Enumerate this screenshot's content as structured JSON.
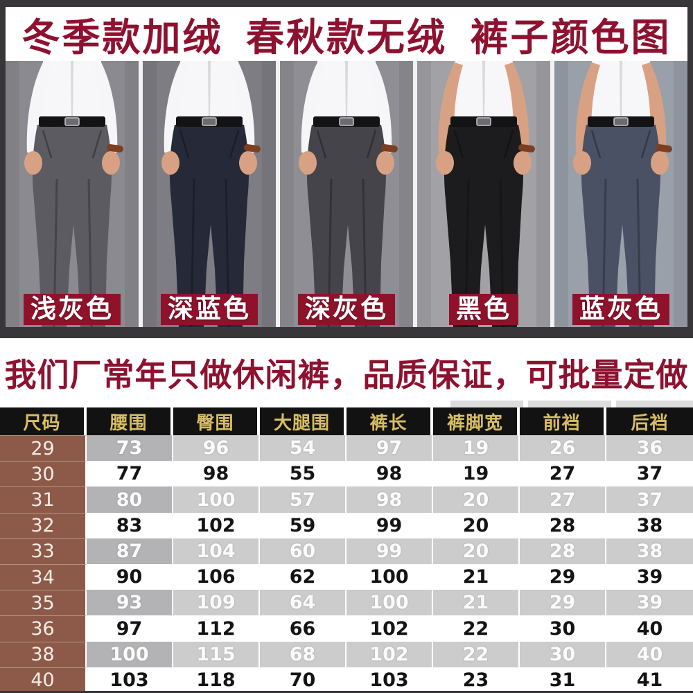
{
  "page": {
    "frame_hex": "#39363a",
    "accent_red_hex": "#8e1230",
    "label_red_hex": "#8f122b"
  },
  "title": {
    "text": "冬季款加绒  春秋款无绒  裤子颜色图"
  },
  "slogan": {
    "text": "我们厂常年只做休闲裤，品质保证，可批量定做"
  },
  "photos": [
    {
      "label": "浅灰色",
      "pants_hex": "#5c5b61",
      "bg_hex": "#8b8a90",
      "sleeve_hex": "#f6f6f8"
    },
    {
      "label": "深蓝色",
      "pants_hex": "#262a38",
      "bg_hex": "#7e7d84",
      "sleeve_hex": "#f6f6f8"
    },
    {
      "label": "深灰色",
      "pants_hex": "#45444a",
      "bg_hex": "#8f8e94",
      "sleeve_hex": "#f6f6f8"
    },
    {
      "label": "黑色",
      "pants_hex": "#1c1c1f",
      "bg_hex": "#a2a2a6",
      "sleeve_hex": "#d9a183"
    },
    {
      "label": "蓝灰色",
      "pants_hex": "#4a5164",
      "bg_hex": "#99a0aa",
      "sleeve_hex": "#d9a183"
    }
  ],
  "size_table": {
    "header_bg_hex": "#121212",
    "header_text_hex": "#d8be62",
    "size_col_hex": "#8d5a49",
    "columns": [
      "尺码",
      "腰围",
      "臀围",
      "大腿围",
      "裤长",
      "裤脚宽",
      "前裆",
      "后裆"
    ],
    "rows": [
      [
        "29",
        "73",
        "96",
        "54",
        "97",
        "19",
        "26",
        "36"
      ],
      [
        "30",
        "77",
        "98",
        "55",
        "98",
        "19",
        "27",
        "37"
      ],
      [
        "31",
        "80",
        "100",
        "57",
        "98",
        "20",
        "27",
        "37"
      ],
      [
        "32",
        "83",
        "102",
        "59",
        "99",
        "20",
        "28",
        "38"
      ],
      [
        "33",
        "87",
        "104",
        "60",
        "99",
        "20",
        "28",
        "38"
      ],
      [
        "34",
        "90",
        "106",
        "62",
        "100",
        "21",
        "29",
        "39"
      ],
      [
        "35",
        "93",
        "109",
        "64",
        "100",
        "21",
        "29",
        "39"
      ],
      [
        "36",
        "97",
        "112",
        "66",
        "102",
        "22",
        "30",
        "40"
      ],
      [
        "38",
        "100",
        "115",
        "68",
        "102",
        "22",
        "30",
        "40"
      ],
      [
        "40",
        "103",
        "118",
        "70",
        "103",
        "23",
        "31",
        "41"
      ]
    ]
  }
}
